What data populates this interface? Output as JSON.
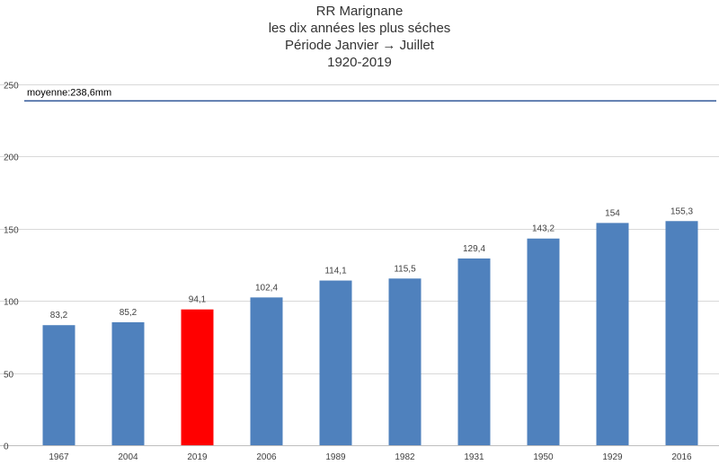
{
  "chart_data": {
    "type": "bar",
    "title": "RR Marignane",
    "subtitle": [
      "les dix années les plus séches",
      "Période Janvier → Juillet",
      "1920-2019"
    ],
    "categories": [
      "1967",
      "2004",
      "2019",
      "2006",
      "1989",
      "1982",
      "1931",
      "1950",
      "1929",
      "2016"
    ],
    "values": [
      83.2,
      85.2,
      94.1,
      102.4,
      114.1,
      115.5,
      129.4,
      143.2,
      154,
      155.3
    ],
    "data_labels": [
      "83,2",
      "85,2",
      "94,1",
      "102,4",
      "114,1",
      "115,5",
      "129,4",
      "143,2",
      "154",
      "155,3"
    ],
    "bar_color": "#4f81bd",
    "highlight": {
      "category": "2019",
      "color": "#ff0000"
    },
    "xlabel": "",
    "ylabel": "",
    "ylim": [
      0,
      250
    ],
    "yticks": [
      0,
      50,
      100,
      150,
      200,
      250
    ],
    "grid": true,
    "legend": "none",
    "reference_line": {
      "value": 238.6,
      "label": "moyenne:238,6mm",
      "color": "#2e5597"
    }
  }
}
